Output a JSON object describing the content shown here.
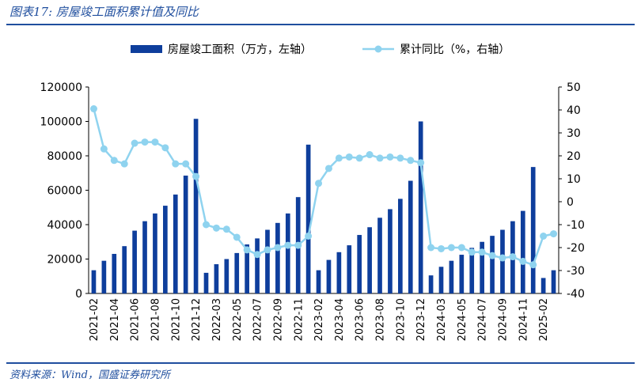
{
  "header": {
    "title": "图表17: 房屋竣工面积累计值及同比"
  },
  "footer": {
    "source": "资料来源：Wind，国盛证券研究所"
  },
  "colors": {
    "bar": "#0e3e9c",
    "line": "#8fd3ef",
    "rule": "#1f4e9e"
  },
  "chart_data": {
    "type": "bar+line",
    "title": "",
    "legend_placement": "top-center",
    "grid": false,
    "categories": [
      "2021-02",
      "2021-03",
      "2021-04",
      "2021-05",
      "2021-06",
      "2021-07",
      "2021-08",
      "2021-09",
      "2021-10",
      "2021-11",
      "2021-12",
      "2022-02",
      "2022-03",
      "2022-04",
      "2022-05",
      "2022-06",
      "2022-07",
      "2022-08",
      "2022-09",
      "2022-10",
      "2022-11",
      "2022-12",
      "2023-02",
      "2023-03",
      "2023-04",
      "2023-05",
      "2023-06",
      "2023-07",
      "2023-08",
      "2023-09",
      "2023-10",
      "2023-11",
      "2023-12",
      "2024-02",
      "2024-03",
      "2024-04",
      "2024-05",
      "2024-06",
      "2024-07",
      "2024-08",
      "2024-09",
      "2024-10",
      "2024-11",
      "2024-12",
      "2025-02",
      "2025-03"
    ],
    "x_tick_labels": [
      "2021-02",
      "2021-04",
      "2021-06",
      "2021-08",
      "2021-10",
      "2021-12",
      "2022-03",
      "2022-05",
      "2022-07",
      "2022-09",
      "2022-11",
      "2023-02",
      "2023-04",
      "2023-06",
      "2023-08",
      "2023-10",
      "2023-12",
      "2024-03",
      "2024-05",
      "2024-07",
      "2024-09",
      "2024-11",
      "2025-02"
    ],
    "left_axis": {
      "ylim": [
        0,
        120000
      ],
      "ticks": [
        "0",
        "20000",
        "40000",
        "60000",
        "80000",
        "100000",
        "120000"
      ]
    },
    "right_axis": {
      "ylim": [
        -40,
        50
      ],
      "ticks": [
        "-40",
        "-30",
        "-20",
        "-10",
        "0",
        "10",
        "20",
        "30",
        "40",
        "50"
      ]
    },
    "series": [
      {
        "name": "房屋竣工面积（万方，左轴）",
        "type": "bar",
        "axis": "left",
        "values": [
          13500,
          19000,
          23000,
          27500,
          36500,
          42000,
          46500,
          51000,
          57500,
          68500,
          101500,
          12000,
          17000,
          20000,
          23500,
          28500,
          32000,
          37000,
          41000,
          46500,
          56000,
          86500,
          13500,
          19500,
          24000,
          28000,
          34000,
          38500,
          44000,
          49000,
          55000,
          65500,
          100000,
          10500,
          15500,
          19000,
          22500,
          26500,
          30000,
          33500,
          37000,
          42000,
          48000,
          73500,
          9000,
          13500
        ]
      },
      {
        "name": "累计同比（%，右轴）",
        "type": "line",
        "axis": "right",
        "values": [
          40.5,
          23,
          18,
          16.5,
          25.5,
          26,
          26,
          23.5,
          16.5,
          16.5,
          11,
          -10,
          -11.5,
          -12,
          -15.5,
          -21,
          -23,
          -21,
          -20,
          -19,
          -19,
          -15,
          8,
          14.5,
          19,
          19.5,
          19,
          20.5,
          19,
          19.5,
          19,
          18,
          17,
          -20,
          -20.5,
          -20,
          -20,
          -22,
          -22,
          -23.5,
          -24.5,
          -24,
          -26,
          -27.5,
          -15,
          -14
        ]
      }
    ]
  }
}
